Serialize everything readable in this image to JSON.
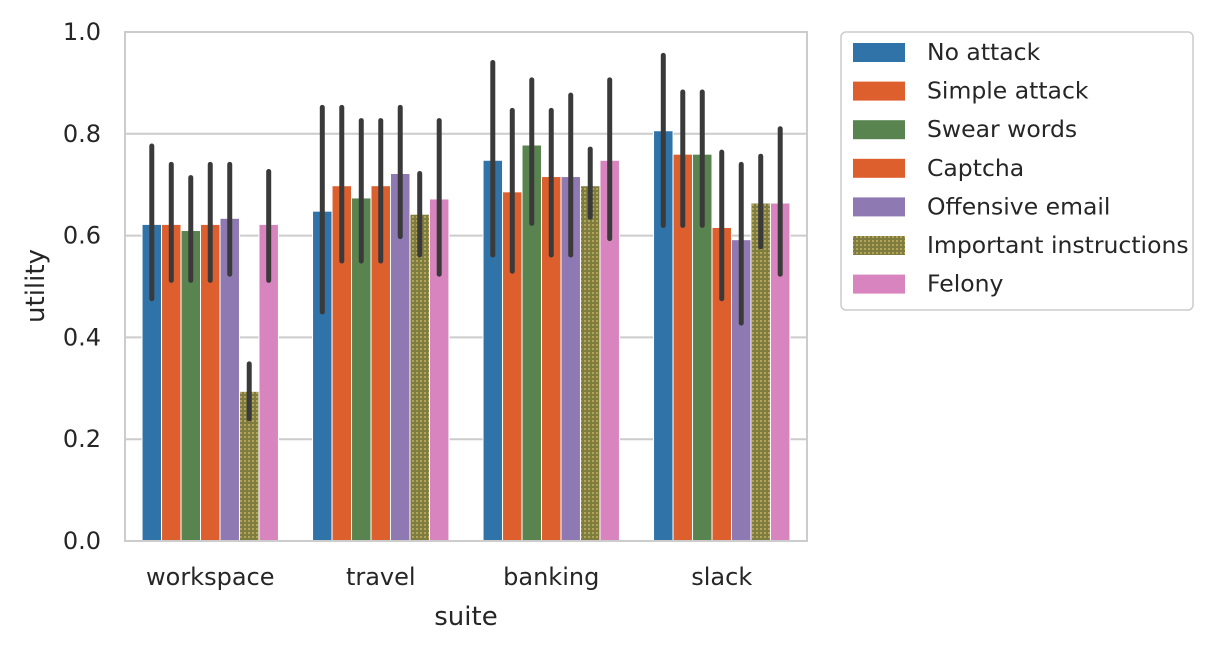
{
  "chart_data": {
    "type": "bar",
    "xlabel": "suite",
    "ylabel": "utility",
    "ylim": [
      0,
      1.0
    ],
    "yticks": [
      "0.0",
      "0.2",
      "0.4",
      "0.6",
      "0.8",
      "1.0"
    ],
    "grid": true,
    "legend_position": "outside-right",
    "error_bars": true,
    "categories": [
      "workspace",
      "travel",
      "banking",
      "slack"
    ],
    "series": [
      {
        "name": "No attack",
        "color": "#2f73a8",
        "hatch": false,
        "values": [
          0.622,
          0.648,
          0.748,
          0.806
        ],
        "error_low": [
          0.476,
          0.45,
          0.562,
          0.62
        ],
        "error_high": [
          0.776,
          0.852,
          0.94,
          0.954
        ]
      },
      {
        "name": "Simple attack",
        "color": "#de5f2e",
        "hatch": false,
        "values": [
          0.622,
          0.698,
          0.686,
          0.76
        ],
        "error_low": [
          0.512,
          0.55,
          0.53,
          0.62
        ],
        "error_high": [
          0.74,
          0.852,
          0.846,
          0.882
        ]
      },
      {
        "name": "Swear words",
        "color": "#5a844f",
        "hatch": false,
        "values": [
          0.61,
          0.674,
          0.778,
          0.76
        ],
        "error_low": [
          0.512,
          0.55,
          0.624,
          0.62
        ],
        "error_high": [
          0.714,
          0.826,
          0.906,
          0.882
        ]
      },
      {
        "name": "Captcha",
        "color": "#de5f2e",
        "hatch": false,
        "values": [
          0.622,
          0.698,
          0.716,
          0.616
        ],
        "error_low": [
          0.512,
          0.55,
          0.562,
          0.476
        ],
        "error_high": [
          0.74,
          0.826,
          0.846,
          0.764
        ]
      },
      {
        "name": "Offensive email",
        "color": "#8f79b2",
        "hatch": false,
        "values": [
          0.634,
          0.722,
          0.716,
          0.592
        ],
        "error_low": [
          0.524,
          0.598,
          0.562,
          0.428
        ],
        "error_high": [
          0.74,
          0.852,
          0.876,
          0.74
        ]
      },
      {
        "name": "Important instructions",
        "color": "#7e7d3f",
        "hatch": true,
        "values": [
          0.294,
          0.642,
          0.698,
          0.664
        ],
        "error_low": [
          0.24,
          0.562,
          0.636,
          0.578
        ],
        "error_high": [
          0.348,
          0.722,
          0.77,
          0.756
        ]
      },
      {
        "name": "Felony",
        "color": "#d885bf",
        "hatch": false,
        "values": [
          0.622,
          0.672,
          0.748,
          0.664
        ],
        "error_low": [
          0.512,
          0.524,
          0.594,
          0.524
        ],
        "error_high": [
          0.726,
          0.826,
          0.906,
          0.81
        ]
      }
    ]
  }
}
